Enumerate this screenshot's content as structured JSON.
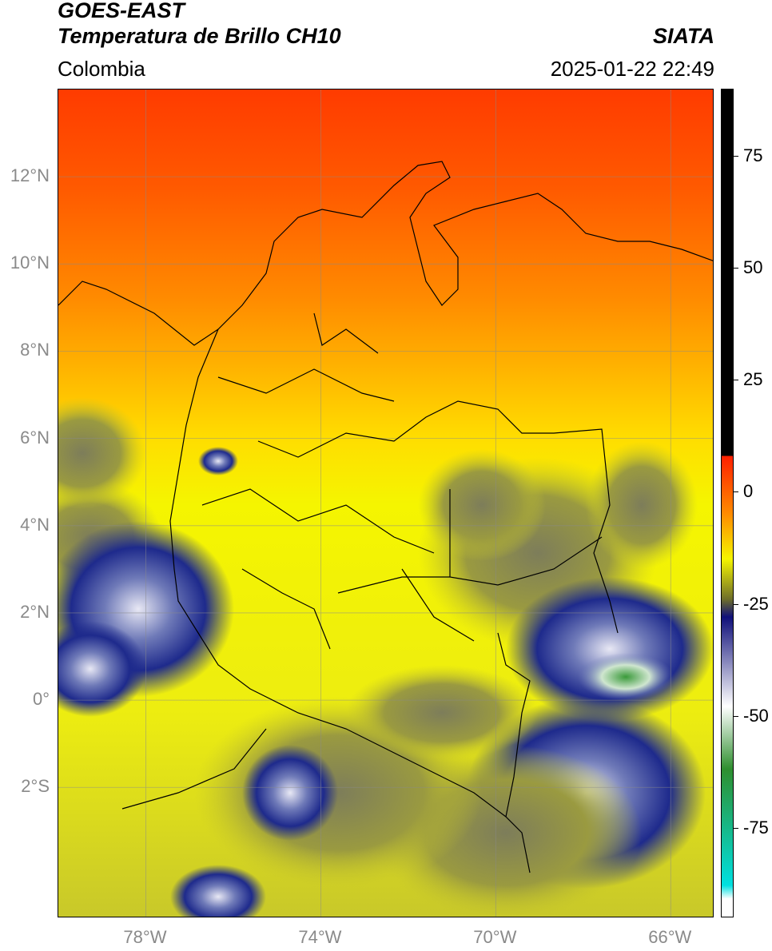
{
  "header": {
    "satellite": "GOES-EAST",
    "product": "Temperatura de Brillo CH10",
    "region": "Colombia",
    "organization": "SIATA",
    "datetime": "2025-01-22 22:49"
  },
  "map": {
    "lat_labels": [
      "12°N",
      "10°N",
      "8°N",
      "6°N",
      "4°N",
      "2°N",
      "0°",
      "2°S"
    ],
    "lon_labels": [
      "78°W",
      "74°W",
      "70°W",
      "66°W"
    ],
    "extent": {
      "lon_min": -80.0,
      "lon_max": -65.0,
      "lat_min": -5.0,
      "lat_max": 14.0
    },
    "gridlines": true,
    "background_color": "#f5f500",
    "warm_color": "#ff3b00",
    "cold_cloud_color": "#1e2a8c",
    "coldest_color": "#3a9a3a"
  },
  "colorbar": {
    "ticks": [
      "75",
      "50",
      "25",
      "0",
      "-25",
      "-50",
      "-75"
    ],
    "range": [
      -95,
      90
    ],
    "colors": {
      "black": "#000000",
      "red": "#ff2000",
      "orange": "#ff8c00",
      "yellow": "#f5f500",
      "olive": "#6f6f2a",
      "navy": "#10107a",
      "white": "#ffffff",
      "green": "#2f8f2f",
      "cyan": "#00e0e0"
    }
  }
}
